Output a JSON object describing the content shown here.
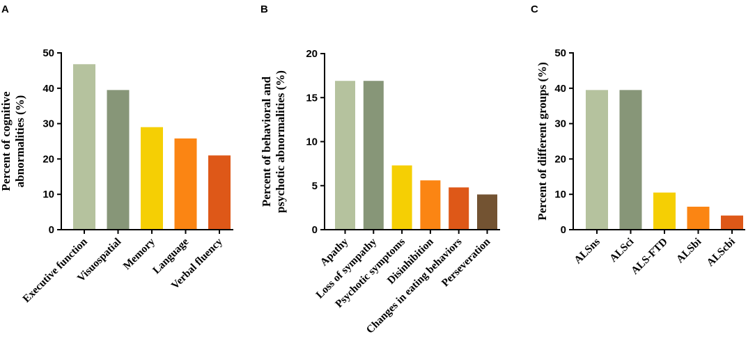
{
  "chart_data": [
    {
      "type": "bar",
      "panel": "A",
      "title": "",
      "xlabel": "",
      "ylabel": "Percent of cognitive abnormalities (%)",
      "ylabel_lines": [
        "Percent of cognitive",
        "abnormalities (%)"
      ],
      "ylim": [
        0,
        50
      ],
      "yticks": [
        0,
        10,
        20,
        30,
        40,
        50
      ],
      "categories": [
        "Executive function",
        "Visuospatial",
        "Memory",
        "Language",
        "Verbal fluency"
      ],
      "values": [
        46.8,
        39.5,
        29.0,
        25.8,
        21.0
      ],
      "colors": [
        "#b5c29e",
        "#879678",
        "#f5cf04",
        "#fb8513",
        "#de5818"
      ],
      "grid": false
    },
    {
      "type": "bar",
      "panel": "B",
      "title": "",
      "xlabel": "",
      "ylabel": "Percent of behavioral and psychotic abnormalities (%)",
      "ylabel_lines": [
        "Percent of behavioral and",
        "psychotic abnormalities (%)"
      ],
      "ylim": [
        0,
        20
      ],
      "yticks": [
        0,
        5,
        10,
        15,
        20
      ],
      "categories": [
        "Apathy",
        "Loss of sympathy",
        "Psychotic symptoms",
        "Disinhibition",
        "Changes in eating behaviors",
        "Perseveration"
      ],
      "values": [
        16.9,
        16.9,
        7.3,
        5.6,
        4.8,
        4.0
      ],
      "colors": [
        "#b5c29e",
        "#879678",
        "#f5cf04",
        "#fb8513",
        "#de5818",
        "#735332"
      ],
      "grid": false
    },
    {
      "type": "bar",
      "panel": "C",
      "title": "",
      "xlabel": "",
      "ylabel": "Percent of different groups (%)",
      "ylabel_lines": [
        "Percent of different groups (%)"
      ],
      "ylim": [
        0,
        50
      ],
      "yticks": [
        0,
        10,
        20,
        30,
        40,
        50
      ],
      "categories": [
        "ALSns",
        "ALSci",
        "ALS-FTD",
        "ALSbi",
        "ALScbi"
      ],
      "values": [
        39.5,
        39.5,
        10.5,
        6.5,
        4.0
      ],
      "colors": [
        "#b5c29e",
        "#879678",
        "#f5cf04",
        "#fb8513",
        "#de5818"
      ],
      "grid": false
    }
  ]
}
